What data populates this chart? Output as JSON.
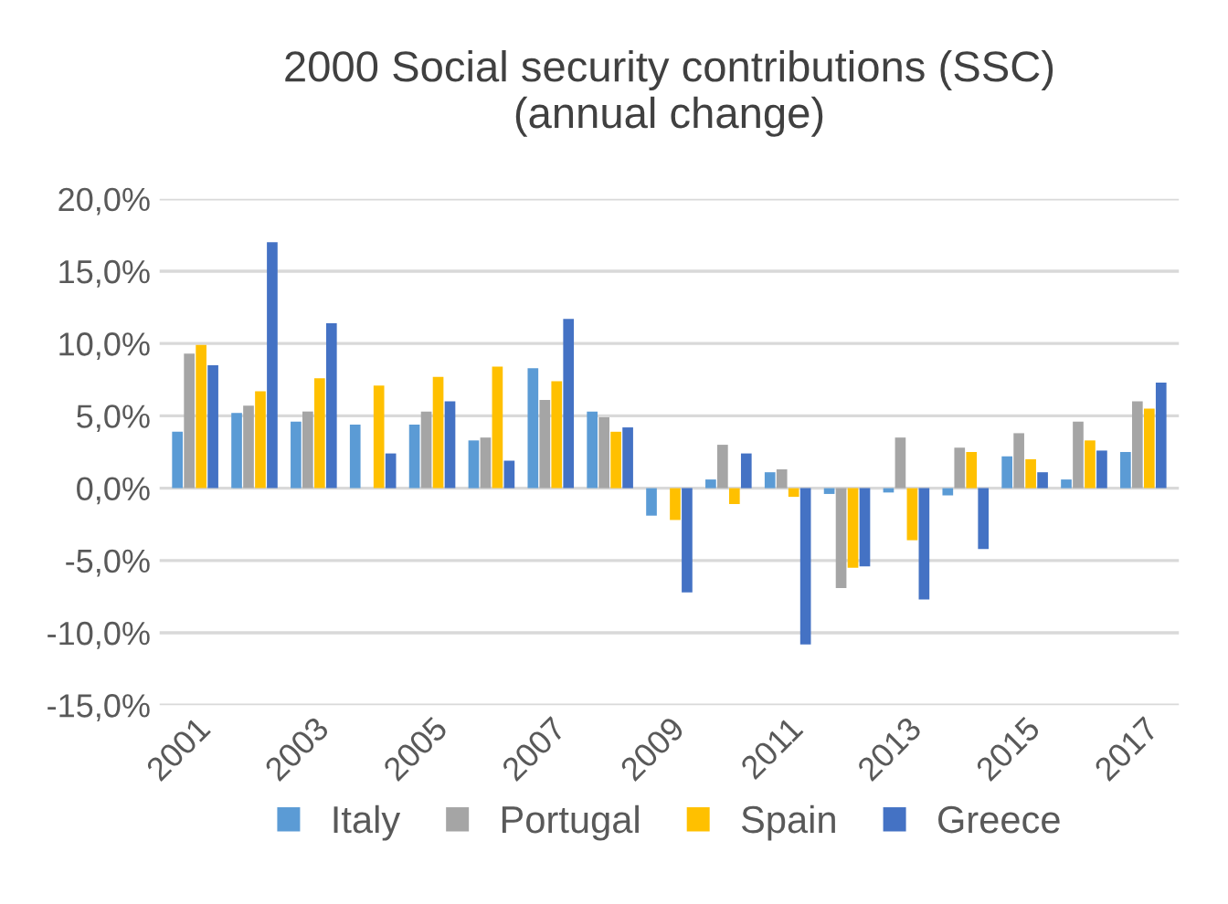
{
  "chart_data": {
    "type": "bar",
    "title": "2000 Social security contributions (SSC)\n(annual change)",
    "categories": [
      "2001",
      null,
      "2003",
      null,
      "2005",
      null,
      "2007",
      null,
      "2009",
      null,
      "2011",
      null,
      "2013",
      null,
      "2015",
      null,
      "2017"
    ],
    "series": [
      {
        "name": "Italy",
        "color": "#5b9bd5",
        "values": [
          3.9,
          5.2,
          4.6,
          4.4,
          4.4,
          3.3,
          8.3,
          5.3,
          -1.9,
          0.6,
          1.1,
          -0.4,
          -0.3,
          -0.5,
          2.2,
          0.6,
          2.5
        ]
      },
      {
        "name": "Portugal",
        "color": "#a5a5a5",
        "values": [
          9.3,
          5.7,
          5.3,
          0.0,
          5.3,
          3.5,
          6.1,
          4.9,
          null,
          3.0,
          1.3,
          -6.9,
          3.5,
          2.8,
          3.8,
          4.6,
          6.0
        ]
      },
      {
        "name": "Spain",
        "color": "#ffc000",
        "values": [
          9.9,
          6.7,
          7.6,
          7.1,
          7.7,
          8.4,
          7.4,
          3.9,
          -2.2,
          -1.1,
          -0.6,
          -5.5,
          -3.6,
          2.5,
          2.0,
          3.3,
          5.5
        ]
      },
      {
        "name": "Greece",
        "color": "#4472c4",
        "values": [
          8.5,
          17.0,
          11.4,
          2.4,
          6.0,
          1.9,
          11.7,
          4.2,
          -7.2,
          2.4,
          -10.8,
          -5.4,
          -7.7,
          -4.2,
          1.1,
          2.6,
          7.3
        ]
      }
    ],
    "ylim": [
      -15,
      20
    ],
    "yticks": [
      {
        "value": -15,
        "label": "-15,0%"
      },
      {
        "value": -10,
        "label": "-10,0%"
      },
      {
        "value": -5,
        "label": "-5,0%"
      },
      {
        "value": 0,
        "label": "0,0%"
      },
      {
        "value": 5,
        "label": "5,0%"
      },
      {
        "value": 10,
        "label": "10,0%"
      },
      {
        "value": 15,
        "label": "15,0%"
      },
      {
        "value": 20,
        "label": "20,0%"
      }
    ],
    "grid": "y",
    "legend": "bottom"
  }
}
